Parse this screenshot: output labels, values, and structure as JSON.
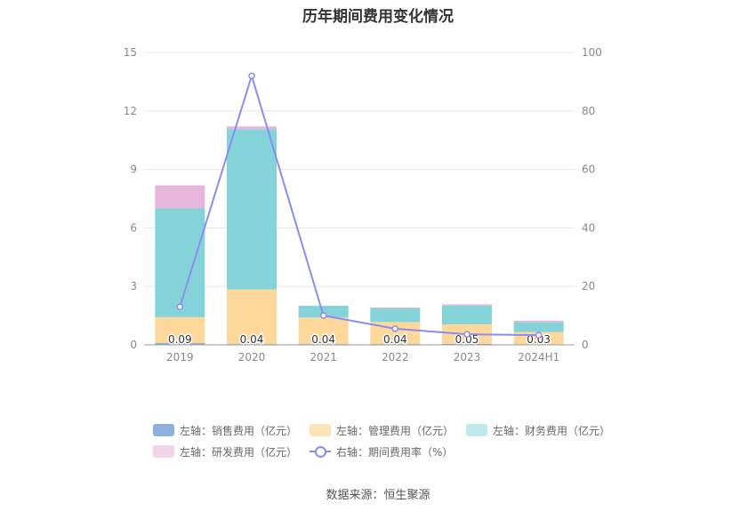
{
  "chart_data": {
    "type": "bar",
    "title": "历年期间费用变化情况",
    "categories": [
      "2019",
      "2020",
      "2021",
      "2022",
      "2023",
      "2024H1"
    ],
    "left_axis": {
      "ylim": [
        0,
        15
      ],
      "ticks": [
        "0",
        "3",
        "6",
        "9",
        "12",
        "15"
      ]
    },
    "right_axis": {
      "ylim": [
        0,
        100
      ],
      "ticks": [
        "0",
        "20",
        "40",
        "60",
        "80",
        "100"
      ]
    },
    "series": [
      {
        "name": "左轴：销售费用（亿元）",
        "type": "stacked-bar",
        "axis": "left",
        "color": "#8eb0dc",
        "values": [
          0.09,
          0.04,
          0.04,
          0.04,
          0.05,
          0.03
        ],
        "labels": [
          "0.09",
          "0.04",
          "0.04",
          "0.04",
          "0.05",
          "0.03"
        ]
      },
      {
        "name": "左轴：管理费用（亿元）",
        "type": "stacked-bar",
        "axis": "left",
        "color": "#fdd89a",
        "values": [
          1.33,
          2.8,
          1.36,
          1.13,
          1.0,
          0.63
        ]
      },
      {
        "name": "左轴：财务费用（亿元）",
        "type": "stacked-bar",
        "axis": "left",
        "color": "#84d3d8",
        "values": [
          5.58,
          8.23,
          0.6,
          0.7,
          0.97,
          0.5
        ]
      },
      {
        "name": "左轴：研发费用（亿元）",
        "type": "stacked-bar",
        "axis": "left",
        "color": "#e8b6dc",
        "values": [
          1.18,
          0.13,
          0.0,
          0.05,
          0.06,
          0.08
        ]
      },
      {
        "name": "右轴：期间费用率（%）",
        "type": "line",
        "axis": "right",
        "color": "#8c8cf0",
        "values": [
          13.0,
          92.0,
          10.0,
          5.5,
          3.6,
          3.3
        ]
      }
    ],
    "legend_position": "bottom",
    "grid": true
  },
  "legend": [
    [
      {
        "label": "左轴：销售费用（亿元）",
        "color": "#8eb0dc",
        "kind": "bar"
      },
      {
        "label": "左轴：管理费用（亿元）",
        "color": "#fde3b8",
        "kind": "bar"
      },
      {
        "label": "左轴：财务费用（亿元）",
        "color": "#bde9eb",
        "kind": "bar"
      }
    ],
    [
      {
        "label": "左轴：研发费用（亿元）",
        "color": "#f2d3ea",
        "kind": "bar"
      },
      {
        "label": "右轴：期间费用率（%）",
        "color": "#8c8cf0",
        "kind": "line"
      }
    ]
  ],
  "source": "数据来源：恒生聚源"
}
